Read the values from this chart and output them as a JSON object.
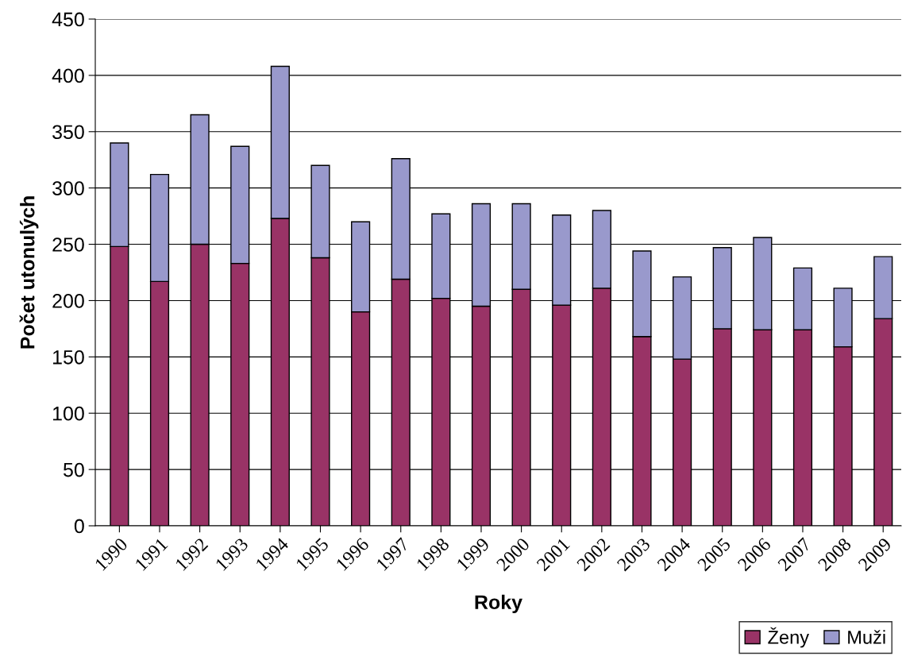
{
  "chart_data": {
    "type": "bar",
    "stacked": true,
    "xlabel": "Roky",
    "ylabel": "Počet utonulých",
    "categories": [
      "1990",
      "1991",
      "1992",
      "1993",
      "1994",
      "1995",
      "1996",
      "1997",
      "1998",
      "1999",
      "2000",
      "2001",
      "2002",
      "2003",
      "2004",
      "2005",
      "2006",
      "2007",
      "2008",
      "2009"
    ],
    "series": [
      {
        "name": "Ženy",
        "color": "#993366",
        "values": [
          248,
          217,
          250,
          233,
          273,
          238,
          190,
          219,
          202,
          195,
          210,
          196,
          211,
          168,
          148,
          175,
          174,
          174,
          159,
          184
        ]
      },
      {
        "name": "Muži",
        "color": "#9999cc",
        "values": [
          92,
          95,
          115,
          104,
          135,
          82,
          80,
          107,
          75,
          91,
          76,
          80,
          69,
          76,
          73,
          72,
          82,
          55,
          52,
          55
        ]
      }
    ],
    "ylim": [
      0,
      450
    ],
    "yticks": [
      0,
      50,
      100,
      150,
      200,
      250,
      300,
      350,
      400,
      450
    ],
    "grid": "y",
    "legend": "bottom right"
  }
}
